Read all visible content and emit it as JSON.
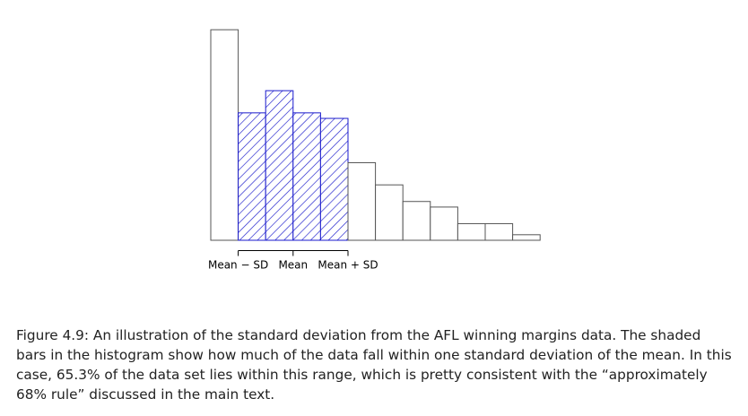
{
  "chart_data": {
    "type": "bar",
    "title": "",
    "xlabel": "",
    "ylabel": "",
    "values": [
      38,
      23,
      27,
      23,
      22,
      14,
      10,
      7,
      6,
      3,
      3,
      1
    ],
    "highlighted_range": [
      1,
      5
    ],
    "colors": {
      "highlight": "#1a1acc",
      "outline": "#555555",
      "axis": "#000000"
    },
    "x_ticks": [
      {
        "bin_edge": 1,
        "label": "Mean − SD"
      },
      {
        "bin_edge": 3,
        "label": "Mean"
      },
      {
        "bin_edge": 5,
        "label": "Mean + SD"
      }
    ]
  },
  "caption": "Figure 4.9: An illustration of the standard deviation from the AFL winning margins data. The shaded bars in the histogram show how much of the data fall within one standard deviation of the mean. In this case, 65.3% of the data set lies within this range, which is pretty consistent with the “approximately 68% rule” discussed in the main text."
}
